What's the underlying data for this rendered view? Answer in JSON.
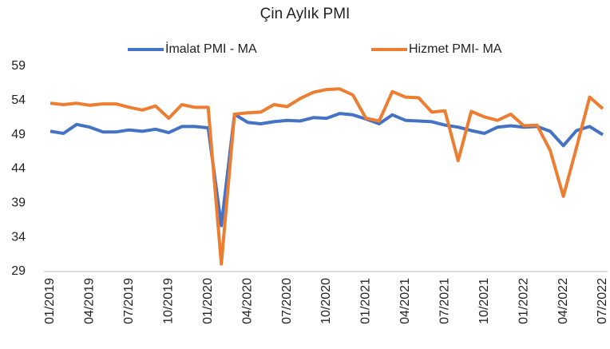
{
  "chart_data": {
    "type": "line",
    "title": "Çin Aylık PMI",
    "categories": [
      "01/2019",
      null,
      null,
      "04/2019",
      null,
      null,
      "07/2019",
      null,
      null,
      "10/2019",
      null,
      null,
      "01/2020",
      null,
      null,
      "04/2020",
      null,
      null,
      "07/2020",
      null,
      null,
      "10/2020",
      null,
      null,
      "01/2021",
      null,
      null,
      "04/2021",
      null,
      null,
      "07/2021",
      null,
      null,
      "10/2021",
      null,
      null,
      "01/2022",
      null,
      null,
      "04/2022",
      null,
      null,
      "07/2022"
    ],
    "series": [
      {
        "name": "İmalat PMI - MA",
        "color": "#4472c4",
        "values": [
          49.5,
          49.2,
          50.5,
          50.1,
          49.4,
          49.4,
          49.7,
          49.5,
          49.8,
          49.3,
          50.2,
          50.2,
          50.0,
          35.7,
          52.0,
          50.8,
          50.6,
          50.9,
          51.1,
          51.0,
          51.5,
          51.4,
          52.1,
          51.9,
          51.3,
          50.6,
          51.9,
          51.1,
          51.0,
          50.9,
          50.4,
          50.1,
          49.6,
          49.2,
          50.1,
          50.3,
          50.1,
          50.2,
          49.5,
          47.4,
          49.6,
          50.2,
          49.0
        ]
      },
      {
        "name": "Hizmet PMI- MA",
        "color": "#ed7d31",
        "values": [
          53.6,
          53.4,
          53.6,
          53.3,
          53.5,
          53.5,
          53.0,
          52.6,
          53.2,
          51.4,
          53.4,
          53.0,
          53.0,
          30.1,
          52.0,
          52.2,
          52.3,
          53.4,
          53.1,
          54.3,
          55.2,
          55.6,
          55.7,
          54.8,
          51.4,
          51.0,
          55.3,
          54.5,
          54.4,
          52.3,
          52.5,
          45.2,
          52.4,
          51.6,
          51.1,
          52.0,
          50.3,
          50.4,
          46.7,
          40.0,
          47.1,
          54.5,
          52.8
        ]
      }
    ],
    "ylim": [
      29,
      59
    ],
    "yticks": [
      29,
      34,
      39,
      44,
      49,
      54,
      59
    ]
  }
}
